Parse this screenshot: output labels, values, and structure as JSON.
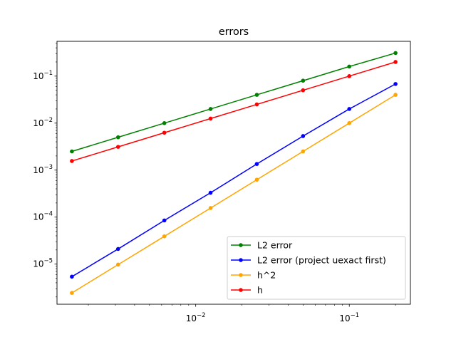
{
  "chart_data": {
    "type": "line",
    "title": "errors",
    "xlabel": "",
    "ylabel": "",
    "xscale": "log",
    "yscale": "log",
    "xlim": [
      0.00125,
      0.25
    ],
    "ylim": [
      1.4e-06,
      0.55
    ],
    "grid": false,
    "legend_position": "lower-right",
    "x": [
      0.0015625,
      0.003125,
      0.00625,
      0.0125,
      0.025,
      0.05,
      0.1,
      0.2
    ],
    "x_ticks": [
      {
        "value": 0.01,
        "base": "10",
        "exp": "−2"
      },
      {
        "value": 0.1,
        "base": "10",
        "exp": "−1"
      }
    ],
    "y_ticks": [
      {
        "value": 1e-05,
        "base": "10",
        "exp": "−5"
      },
      {
        "value": 0.0001,
        "base": "10",
        "exp": "−4"
      },
      {
        "value": 0.001,
        "base": "10",
        "exp": "−3"
      },
      {
        "value": 0.01,
        "base": "10",
        "exp": "−2"
      },
      {
        "value": 0.1,
        "base": "10",
        "exp": "−1"
      }
    ],
    "series": [
      {
        "name": "L2 error",
        "color": "#008000",
        "values": [
          0.0025,
          0.005,
          0.01,
          0.02,
          0.04,
          0.08,
          0.16,
          0.31
        ]
      },
      {
        "name": "L2 error (project uexact first)",
        "color": "#0000ff",
        "values": [
          5.4e-06,
          2.1e-05,
          8.5e-05,
          0.00033,
          0.00135,
          0.0053,
          0.02,
          0.068
        ]
      },
      {
        "name": "h^2",
        "color": "#ffa500",
        "values": [
          2.44e-06,
          9.77e-06,
          3.9e-05,
          0.000156,
          0.000625,
          0.0025,
          0.01,
          0.04
        ]
      },
      {
        "name": "h",
        "color": "#ff0000",
        "values": [
          0.0015625,
          0.003125,
          0.00625,
          0.0125,
          0.025,
          0.05,
          0.1,
          0.2
        ]
      }
    ]
  }
}
